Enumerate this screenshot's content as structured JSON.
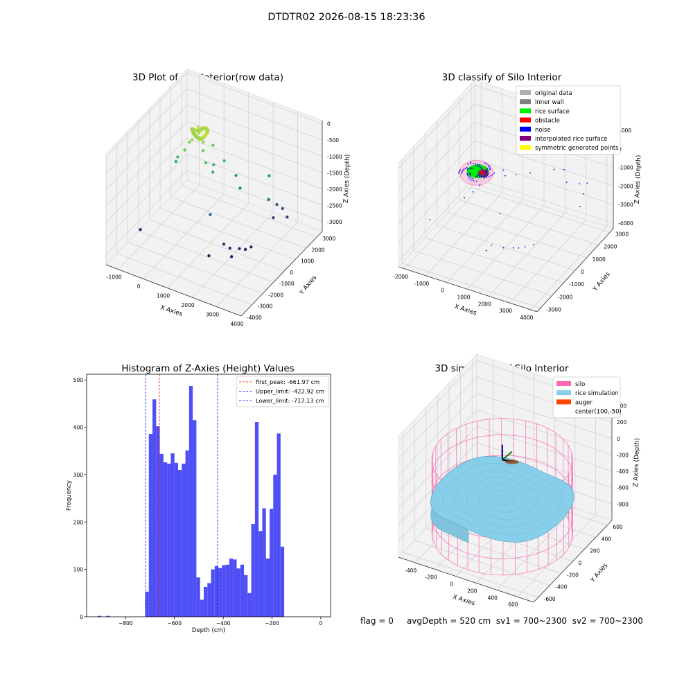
{
  "figure": {
    "suptitle": "DTDTR02 2026-08-15 18:23:36",
    "footer": {
      "flag": "flag = 0",
      "avg_depth": "avgDepth = 520 cm",
      "sv1": "sv1 = 700~2300",
      "sv2": "sv2 = 700~2300"
    }
  },
  "chart_data": [
    {
      "type": "scatter",
      "title": "3D Plot of Silo Interior(row data)",
      "xlabel": "X Axies",
      "ylabel": "Y Axies",
      "zlabel": "Z Axies (Depth)",
      "x_ticks": [
        -1000,
        0,
        1000,
        2000,
        3000,
        4000
      ],
      "y_ticks": [
        -4000,
        -3000,
        -2000,
        -1000,
        0,
        1000,
        2000,
        3000
      ],
      "z_ticks": [
        0,
        -500,
        -1000,
        -1500,
        -2000,
        -2500,
        -3000
      ],
      "xlim": [
        -1500,
        4000
      ],
      "ylim": [
        -4000,
        3500
      ],
      "zlim": [
        -3300,
        100
      ],
      "colormap": "viridis",
      "grid": true,
      "points": [
        {
          "x": 300,
          "y": 500,
          "z": -300
        },
        {
          "x": 350,
          "y": 600,
          "z": -250
        },
        {
          "x": 250,
          "y": 400,
          "z": -350
        },
        {
          "x": 200,
          "y": 650,
          "z": -200
        },
        {
          "x": 400,
          "y": 300,
          "z": -400
        },
        {
          "x": 150,
          "y": 200,
          "z": -450
        },
        {
          "x": 450,
          "y": 700,
          "z": -150
        },
        {
          "x": 100,
          "y": 550,
          "z": -300
        },
        {
          "x": 500,
          "y": 450,
          "z": -500
        },
        {
          "x": 0,
          "y": 300,
          "z": -600
        },
        {
          "x": 600,
          "y": 200,
          "z": -650
        },
        {
          "x": 700,
          "y": 900,
          "z": -700
        },
        {
          "x": -100,
          "y": 100,
          "z": -800
        },
        {
          "x": 800,
          "y": 0,
          "z": -900
        },
        {
          "x": -300,
          "y": -100,
          "z": -1000
        },
        {
          "x": 900,
          "y": 500,
          "z": -1100
        },
        {
          "x": 1000,
          "y": 200,
          "z": -1200
        },
        {
          "x": 1200,
          "y": 800,
          "z": -1000
        },
        {
          "x": -500,
          "y": 200,
          "z": -1300
        },
        {
          "x": 1500,
          "y": 1200,
          "z": -1500
        },
        {
          "x": 1800,
          "y": 900,
          "z": -1700
        },
        {
          "x": 2500,
          "y": 2000,
          "z": -1500
        },
        {
          "x": 2700,
          "y": 1500,
          "z": -2000
        },
        {
          "x": 2900,
          "y": 1800,
          "z": -2200
        },
        {
          "x": 3000,
          "y": 2100,
          "z": -2400
        },
        {
          "x": 2800,
          "y": 1700,
          "z": -2600
        },
        {
          "x": 3100,
          "y": 2300,
          "z": -2700
        },
        {
          "x": 1200,
          "y": -500,
          "z": -2200
        },
        {
          "x": -1200,
          "y": -1500,
          "z": -3000
        },
        {
          "x": 1800,
          "y": -600,
          "z": -2900
        },
        {
          "x": 2000,
          "y": -500,
          "z": -3000
        },
        {
          "x": 2300,
          "y": -300,
          "z": -3000
        },
        {
          "x": 2500,
          "y": -200,
          "z": -3000
        },
        {
          "x": 2200,
          "y": -800,
          "z": -3100
        },
        {
          "x": 1500,
          "y": -1300,
          "z": -3100
        },
        {
          "x": 2600,
          "y": 100,
          "z": -3000
        }
      ]
    },
    {
      "type": "scatter",
      "title": "3D classify of Silo Interior",
      "xlabel": "X Axies",
      "ylabel": "Y Axies",
      "zlabel": "Z Axies (Depth)",
      "x_ticks": [
        -2000,
        -1000,
        0,
        1000,
        2000,
        3000,
        4000
      ],
      "y_ticks": [
        -3000,
        -2000,
        -1000,
        0,
        1000,
        2000,
        3000
      ],
      "z_ticks": [
        1000,
        0,
        -1000,
        -2000,
        -3000,
        -4000
      ],
      "xlim": [
        -2300,
        4300
      ],
      "ylim": [
        -3300,
        3300
      ],
      "zlim": [
        -4300,
        1300
      ],
      "legend": {
        "placement": "top-right",
        "entries": [
          {
            "label": "original data",
            "color": "#b0b0b0"
          },
          {
            "label": "inner wall",
            "color": "#808080"
          },
          {
            "label": "rice surface",
            "color": "#00ee00"
          },
          {
            "label": "obstacle",
            "color": "#ff0000"
          },
          {
            "label": "noise",
            "color": "#0000ee"
          },
          {
            "label": "interpolated rice surface",
            "color": "#800080"
          },
          {
            "label": "symmetric generated points",
            "color": "#ffff00"
          }
        ]
      },
      "noise_points": [
        {
          "x": 600,
          "y": 500,
          "z": -600
        },
        {
          "x": 800,
          "y": 300,
          "z": -700
        },
        {
          "x": 1100,
          "y": 700,
          "z": -800
        },
        {
          "x": 1500,
          "y": 1200,
          "z": -900
        },
        {
          "x": 2200,
          "y": 2000,
          "z": -1000
        },
        {
          "x": 2500,
          "y": 2300,
          "z": -1100
        },
        {
          "x": 2900,
          "y": 1800,
          "z": -1300
        },
        {
          "x": 3300,
          "y": 2200,
          "z": -1500
        },
        {
          "x": 3500,
          "y": 2500,
          "z": -1600
        },
        {
          "x": 3600,
          "y": 2000,
          "z": -1800
        },
        {
          "x": 3700,
          "y": 1500,
          "z": -2100
        },
        {
          "x": -200,
          "y": -100,
          "z": -1300
        },
        {
          "x": -400,
          "y": -300,
          "z": -1600
        },
        {
          "x": -700,
          "y": -500,
          "z": -1900
        },
        {
          "x": 900,
          "y": -300,
          "z": -2300
        },
        {
          "x": -1800,
          "y": -1500,
          "z": -2800
        },
        {
          "x": 1200,
          "y": -1600,
          "z": -3000
        },
        {
          "x": 1600,
          "y": -1300,
          "z": -3200
        },
        {
          "x": 1900,
          "y": -1000,
          "z": -3300
        },
        {
          "x": 2100,
          "y": -900,
          "z": -3300
        },
        {
          "x": 2300,
          "y": -700,
          "z": -3300
        },
        {
          "x": 1000,
          "y": -1700,
          "z": -3300
        },
        {
          "x": 2600,
          "y": -500,
          "z": -3200
        }
      ]
    },
    {
      "type": "bar",
      "title": "Histogram of Z-Axies (Height) Values",
      "xlabel": "Depth (cm)",
      "ylabel": "Frequency",
      "xlim": [
        -960,
        40
      ],
      "ylim": [
        0,
        512
      ],
      "x_ticks": [
        -800,
        -600,
        -400,
        -200,
        0
      ],
      "y_ticks": [
        0,
        100,
        200,
        300,
        400,
        500
      ],
      "bin_start": -720,
      "bin_width": 15,
      "values": [
        53,
        386,
        459,
        402,
        344,
        326,
        323,
        345,
        325,
        310,
        323,
        351,
        487,
        415,
        83,
        36,
        63,
        71,
        100,
        107,
        103,
        109,
        110,
        123,
        121,
        102,
        110,
        88,
        50,
        196,
        411,
        181,
        229,
        123,
        228,
        300,
        387,
        148
      ],
      "outliers": [
        {
          "x": -915,
          "value": 2
        },
        {
          "x": -880,
          "value": 2
        }
      ],
      "lines": [
        {
          "label": "first_peak: -661.97 cm",
          "x": -661.97,
          "color": "#ff0000"
        },
        {
          "label": "Upper_limit: -422.92 cm",
          "x": -422.92,
          "color": "#0000ff"
        },
        {
          "label": "Lower_limit: -717.13 cm",
          "x": -717.13,
          "color": "#0000ff"
        }
      ],
      "legend": {
        "placement": "top-right"
      },
      "bar_color": "#4f4ff6"
    },
    {
      "type": "surface",
      "title": "3D simulation of Silo Interior",
      "xlabel": "X Axies",
      "ylabel": "Y Axies",
      "zlabel": "Z Axies (Depth)",
      "x_ticks": [
        -400,
        -200,
        0,
        200,
        400,
        600
      ],
      "y_ticks": [
        -600,
        -400,
        -200,
        0,
        200,
        400,
        600
      ],
      "z_ticks": [
        400,
        200,
        0,
        -200,
        -400,
        -600,
        -800
      ],
      "xlim": [
        -560,
        760
      ],
      "ylim": [
        -680,
        680
      ],
      "zlim": [
        -1000,
        480
      ],
      "silo_radius": 600,
      "silo_top": 0,
      "silo_bottom": -900,
      "rice_depth": -520,
      "legend": {
        "placement": "top-right",
        "entries": [
          {
            "label": "silo",
            "color": "#ff69b4"
          },
          {
            "label": "rice simulation",
            "color": "#87ceeb"
          },
          {
            "label": "auger",
            "color": "#ff4500"
          },
          {
            "label": "center(100,-50)",
            "color": ""
          }
        ]
      }
    }
  ]
}
